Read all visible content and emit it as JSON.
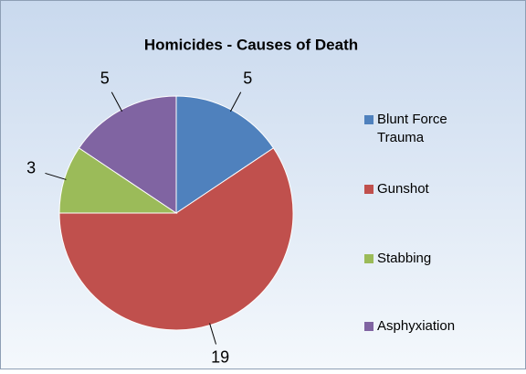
{
  "chart_data": {
    "type": "pie",
    "title": "Homicides - Causes of Death",
    "categories": [
      "Blunt Force Trauma",
      "Gunshot",
      "Stabbing",
      "Asphyxiation"
    ],
    "values": [
      5,
      19,
      3,
      5
    ],
    "colors": [
      "#4f81bd",
      "#c0504d",
      "#9bbb59",
      "#8064a2"
    ],
    "legend": "right"
  }
}
